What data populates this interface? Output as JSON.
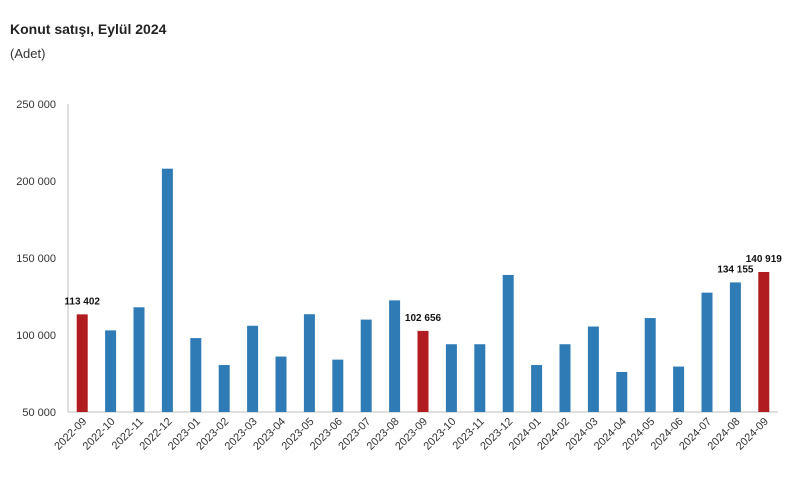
{
  "title": "Konut satışı, Eylül 2024",
  "subtitle": "(Adet)",
  "colors": {
    "normal": "#2f7bb6",
    "highlight": "#b01c20",
    "axis": "#bfbfbf"
  },
  "chart_data": {
    "type": "bar",
    "title": "Konut satışı, Eylül 2024",
    "subtitle": "(Adet)",
    "xlabel": "",
    "ylabel": "",
    "ylim": [
      50000,
      250000
    ],
    "yticks": [
      50000,
      100000,
      150000,
      200000,
      250000
    ],
    "ytick_labels": [
      "50 000",
      "100 000",
      "150 000",
      "200 000",
      "250 000"
    ],
    "grid": false,
    "legend": "none",
    "categories": [
      "2022-09",
      "2022-10",
      "2022-11",
      "2022-12",
      "2023-01",
      "2023-02",
      "2023-03",
      "2023-04",
      "2023-05",
      "2023-06",
      "2023-07",
      "2023-08",
      "2023-09",
      "2023-10",
      "2023-11",
      "2023-12",
      "2024-01",
      "2024-02",
      "2024-03",
      "2024-04",
      "2024-05",
      "2024-06",
      "2024-07",
      "2024-08",
      "2024-09"
    ],
    "values": [
      113402,
      103000,
      118000,
      208000,
      98000,
      80500,
      106000,
      86000,
      113500,
      84000,
      110000,
      122500,
      102656,
      94000,
      94000,
      139000,
      80500,
      94000,
      105500,
      76000,
      111000,
      79500,
      127500,
      134155,
      140919
    ],
    "highlighted": [
      "2022-09",
      "2023-09",
      "2024-09"
    ],
    "data_labels": [
      {
        "category": "2022-09",
        "text": "113 402"
      },
      {
        "category": "2023-09",
        "text": "102 656"
      },
      {
        "category": "2024-08",
        "text": "134 155"
      },
      {
        "category": "2024-09",
        "text": "140 919"
      }
    ]
  }
}
